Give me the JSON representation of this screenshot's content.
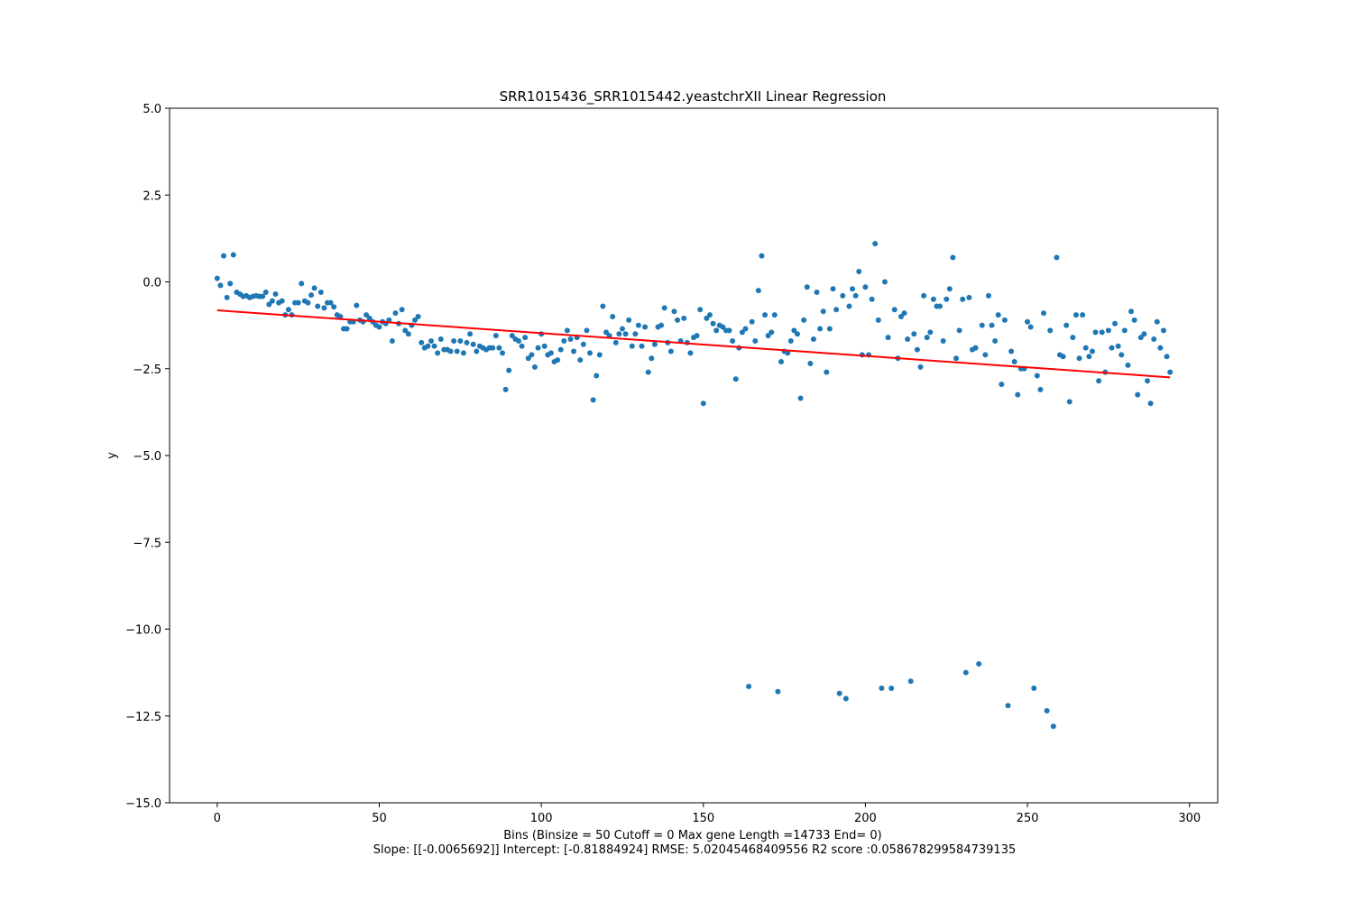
{
  "chart_data": {
    "type": "scatter",
    "title": "SRR1015436_SRR1015442.yeastchrXII Linear Regression",
    "xlabel": "Bins  (Binsize = 50 Cutoff = 0 Max gene Length =14733 End= 0)",
    "subcaption": "Slope: [[-0.0065692]] Intercept: [-0.81884924] RMSE: 5.02045468409556 R2 score :0.058678299584739135",
    "ylabel": "y",
    "xlim": [
      -14.7,
      308.7
    ],
    "ylim": [
      -15,
      5
    ],
    "xticks": [
      0,
      50,
      100,
      150,
      200,
      250,
      300
    ],
    "xtick_labels": [
      "0",
      "50",
      "100",
      "150",
      "200",
      "250",
      "300"
    ],
    "yticks": [
      5.0,
      2.5,
      0.0,
      -2.5,
      -5.0,
      -7.5,
      -10.0,
      -12.5,
      -15.0
    ],
    "ytick_labels": [
      "5.0",
      "2.5",
      "0.0",
      "−2.5",
      "−5.0",
      "−7.5",
      "−10.0",
      "−12.5",
      "−15.0"
    ],
    "grid": false,
    "colors": {
      "points": "#1f77b4",
      "line": "#ff0000"
    },
    "regression": {
      "slope": -0.0065692,
      "intercept": -0.81884924,
      "x_range": [
        0,
        294
      ]
    },
    "series": [
      {
        "x": [
          0,
          1,
          2,
          3,
          4,
          5,
          6,
          7,
          8,
          9,
          10,
          11,
          12,
          13,
          14,
          15,
          16,
          17,
          18,
          19,
          20,
          21,
          22,
          23,
          24,
          25,
          26,
          27,
          28,
          29,
          30,
          31,
          32,
          33,
          34,
          35,
          36,
          37,
          38,
          39,
          40,
          41,
          42,
          43,
          44,
          45,
          46,
          47,
          48,
          49,
          50,
          51,
          52,
          53,
          54,
          55,
          56,
          57,
          58,
          59,
          60,
          61,
          62,
          63,
          64,
          65,
          66,
          67,
          68,
          69,
          70,
          71,
          72,
          73,
          74,
          75,
          76,
          77,
          78,
          79,
          80,
          81,
          82,
          83,
          84,
          85,
          86,
          87,
          88,
          89,
          90,
          91,
          92,
          93,
          94,
          95,
          96,
          97,
          98,
          99,
          100,
          101,
          102,
          103,
          104,
          105,
          106,
          107,
          108,
          109,
          110,
          111,
          112,
          113,
          114,
          115,
          116,
          117,
          118,
          119,
          120,
          121,
          122,
          123,
          124,
          125,
          126,
          127,
          128,
          129,
          130,
          131,
          132,
          133,
          134,
          135,
          136,
          137,
          138,
          139,
          140,
          141,
          142,
          143,
          144,
          145,
          146,
          147,
          148,
          149,
          150,
          151,
          152,
          153,
          154,
          155,
          156,
          157,
          158,
          159,
          160,
          161,
          162,
          163,
          164,
          165,
          166,
          167,
          168,
          169,
          170,
          171,
          172,
          173,
          174,
          175,
          176,
          177,
          178,
          179,
          180,
          181,
          182,
          183,
          184,
          185,
          186,
          187,
          188,
          189,
          190,
          191,
          192,
          193,
          194,
          195,
          196,
          197,
          198,
          199,
          200,
          201,
          202,
          203,
          204,
          205,
          206,
          207,
          208,
          209,
          210,
          211,
          212,
          213,
          214,
          215,
          216,
          217,
          218,
          219,
          220,
          221,
          222,
          223,
          224,
          225,
          226,
          227,
          228,
          229,
          230,
          231,
          232,
          233,
          234,
          235,
          236,
          237,
          238,
          239,
          240,
          241,
          242,
          243,
          244,
          245,
          246,
          247,
          248,
          249,
          250,
          251,
          252,
          253,
          254,
          255,
          256,
          257,
          258,
          259,
          260,
          261,
          262,
          263,
          264,
          265,
          266,
          267,
          268,
          269,
          270,
          271,
          272,
          273,
          274,
          275,
          276,
          277,
          278,
          279,
          280,
          281,
          282,
          283,
          284,
          285,
          286,
          287,
          288,
          289,
          290,
          291,
          292,
          293,
          294
        ],
        "y": [
          0.1,
          -0.1,
          0.75,
          -0.45,
          -0.05,
          0.78,
          -0.3,
          -0.35,
          -0.42,
          -0.4,
          -0.45,
          -0.42,
          -0.4,
          -0.42,
          -0.42,
          -0.3,
          -0.65,
          -0.55,
          -0.35,
          -0.6,
          -0.55,
          -0.95,
          -0.8,
          -0.95,
          -0.6,
          -0.6,
          -0.05,
          -0.55,
          -0.6,
          -0.38,
          -0.18,
          -0.7,
          -0.3,
          -0.75,
          -0.6,
          -0.6,
          -0.72,
          -0.95,
          -1.0,
          -1.35,
          -1.35,
          -1.15,
          -1.15,
          -0.68,
          -1.1,
          -1.15,
          -0.95,
          -1.05,
          -1.15,
          -1.25,
          -1.3,
          -1.15,
          -1.2,
          -1.1,
          -1.7,
          -0.9,
          -1.2,
          -0.8,
          -1.4,
          -1.5,
          -1.25,
          -1.1,
          -1.0,
          -1.75,
          -1.9,
          -1.85,
          -1.7,
          -1.85,
          -2.05,
          -1.65,
          -1.95,
          -1.95,
          -2.0,
          -1.7,
          -2.0,
          -1.7,
          -2.05,
          -1.75,
          -1.5,
          -1.8,
          -2.0,
          -1.85,
          -1.9,
          -1.95,
          -1.9,
          -1.9,
          -1.55,
          -1.9,
          -2.05,
          -3.1,
          -2.55,
          -1.55,
          -1.65,
          -1.7,
          -1.85,
          -1.6,
          -2.2,
          -2.1,
          -2.45,
          -1.9,
          -1.5,
          -1.85,
          -2.1,
          -2.05,
          -2.3,
          -2.25,
          -1.95,
          -1.7,
          -1.4,
          -1.65,
          -2.0,
          -1.6,
          -2.25,
          -1.8,
          -1.4,
          -2.05,
          -3.4,
          -2.7,
          -2.1,
          -0.7,
          -1.45,
          -1.55,
          -1.0,
          -1.75,
          -1.5,
          -1.35,
          -1.5,
          -1.1,
          -1.85,
          -1.5,
          -1.25,
          -1.85,
          -1.3,
          -2.6,
          -2.2,
          -1.8,
          -1.3,
          -1.25,
          -0.75,
          -1.75,
          -2.0,
          -0.85,
          -1.1,
          -1.7,
          -1.05,
          -1.75,
          -2.05,
          -1.6,
          -1.55,
          -0.8,
          -3.5,
          -1.05,
          -0.95,
          -1.2,
          -1.4,
          -1.25,
          -1.3,
          -1.4,
          -1.4,
          -1.7,
          -2.8,
          -1.9,
          -1.45,
          -1.35,
          -11.65,
          -1.15,
          -1.7,
          -0.25,
          0.75,
          -0.95,
          -1.55,
          -1.45,
          -0.95,
          -11.8,
          -2.3,
          -2.0,
          -2.05,
          -1.7,
          -1.4,
          -1.5,
          -3.35,
          -1.1,
          -0.15,
          -2.35,
          -1.65,
          -0.3,
          -1.35,
          -0.85,
          -2.6,
          -1.35,
          -0.2,
          -0.8,
          -11.85,
          -0.4,
          -12.0,
          -0.7,
          -0.2,
          -0.4,
          0.3,
          -2.1,
          -0.15,
          -2.1,
          -0.5,
          1.1,
          -1.1,
          -11.7,
          0.0,
          -1.6,
          -11.7,
          -0.8,
          -2.2,
          -1.0,
          -0.9,
          -1.65,
          -11.5,
          -1.5,
          -1.95,
          -2.45,
          -0.4,
          -1.6,
          -1.45,
          -0.5,
          -0.7,
          -0.7,
          -1.7,
          -0.5,
          -0.2,
          0.7,
          -2.2,
          -1.4,
          -0.5,
          -11.25,
          -0.45,
          -1.95,
          -1.9,
          -11.0,
          -1.25,
          -2.1,
          -0.4,
          -1.25,
          -1.7,
          -0.95,
          -2.95,
          -1.1,
          -12.2,
          -2.0,
          -2.3,
          -3.25,
          -2.5,
          -2.5,
          -1.15,
          -1.3,
          -11.7,
          -2.7,
          -3.1,
          -0.9,
          -12.35,
          -1.4,
          -12.8,
          0.7,
          -2.1,
          -2.15,
          -1.25,
          -3.45,
          -1.6,
          -0.95,
          -2.2,
          -0.95,
          -1.9,
          -2.15,
          -2.0,
          -1.45,
          -2.85,
          -1.45,
          -2.6,
          -1.4,
          -1.9,
          -1.2,
          -1.85,
          -2.1,
          -1.4,
          -2.4,
          -0.85,
          -1.1,
          -3.25,
          -1.6,
          -1.5,
          -2.85,
          -3.5,
          -1.65,
          -1.15,
          -1.9,
          -1.4,
          -2.15,
          -2.6
        ]
      }
    ]
  }
}
